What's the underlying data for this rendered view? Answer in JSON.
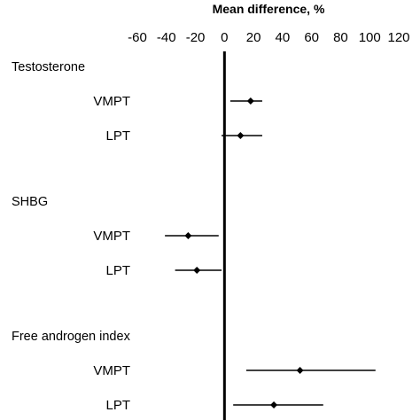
{
  "chart_data": {
    "type": "forest",
    "title": "Mean difference, %",
    "xlim": [
      -60,
      120
    ],
    "xticks": [
      -60,
      -40,
      -20,
      0,
      20,
      40,
      60,
      80,
      100,
      120
    ],
    "reference_line": 0,
    "groups": [
      {
        "name": "Testosterone",
        "rows": [
          {
            "label": "VMPT",
            "estimate": 18,
            "ci": [
              4,
              26
            ]
          },
          {
            "label": "LPT",
            "estimate": 11,
            "ci": [
              -2,
              26
            ]
          }
        ]
      },
      {
        "name": "SHBG",
        "rows": [
          {
            "label": "VMPT",
            "estimate": -25,
            "ci": [
              -41,
              -4
            ]
          },
          {
            "label": "LPT",
            "estimate": -19,
            "ci": [
              -34,
              -2
            ]
          }
        ]
      },
      {
        "name": "Free androgen index",
        "rows": [
          {
            "label": "VMPT",
            "estimate": 52,
            "ci": [
              15,
              104
            ]
          },
          {
            "label": "LPT",
            "estimate": 34,
            "ci": [
              6,
              68
            ]
          }
        ]
      }
    ]
  }
}
